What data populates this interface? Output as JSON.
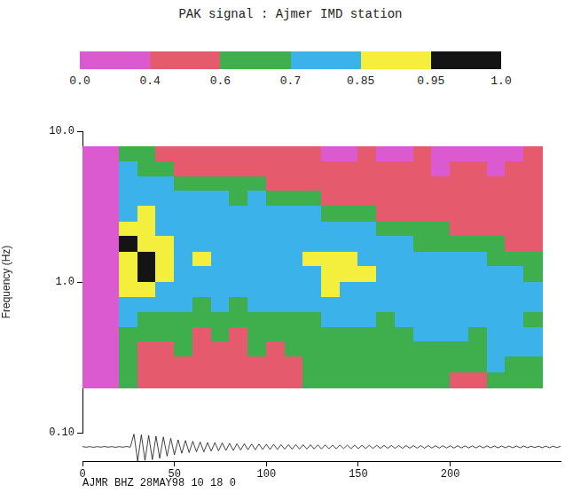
{
  "chart_data": {
    "type": "heatmap",
    "title": "PAK signal : Ajmer IMD station",
    "xlabel": "AJMR BHZ 28MAY98 10 18 0",
    "ylabel": "Frequency (Hz)",
    "log": "y",
    "grid": false,
    "xlim": [
      0,
      260
    ],
    "xticks": [
      0,
      50,
      100,
      150,
      200
    ],
    "ylim": [
      0.1,
      10
    ],
    "yticks": [
      {
        "value": 0.1,
        "label": "0.10"
      },
      {
        "value": 1,
        "label": "1.0"
      },
      {
        "value": 10,
        "label": "10.0"
      }
    ],
    "colorbar": {
      "range": [
        0,
        1
      ],
      "ticks": [
        {
          "value": 0,
          "label": "0.0"
        },
        {
          "value": 0.4,
          "label": "0.4"
        },
        {
          "value": 0.6,
          "label": "0.6"
        },
        {
          "value": 0.7,
          "label": "0.7"
        },
        {
          "value": 0.85,
          "label": "0.85"
        },
        {
          "value": 0.95,
          "label": "0.95"
        },
        {
          "value": 1,
          "label": "1.0"
        }
      ],
      "colors": [
        "#dc5ad0",
        "#e65a6e",
        "#3fae4c",
        "#3cb2ea",
        "#f4ef3c",
        "#141414"
      ]
    },
    "x_edges": [
      0,
      10,
      20,
      30,
      40,
      50,
      60,
      70,
      80,
      90,
      100,
      110,
      120,
      130,
      140,
      150,
      160,
      170,
      180,
      190,
      200,
      210,
      220,
      230,
      240,
      250
    ],
    "y_edges": [
      7.9,
      6.3,
      5.0,
      4.0,
      3.2,
      2.5,
      2.0,
      1.58,
      1.26,
      1.0,
      0.79,
      0.63,
      0.5,
      0.4,
      0.32,
      0.25,
      0.2
    ],
    "cells": [
      [
        0.3,
        0.3,
        0.65,
        0.65,
        0.5,
        0.5,
        0.5,
        0.5,
        0.5,
        0.5,
        0.5,
        0.5,
        0.5,
        0.3,
        0.3,
        0.5,
        0.3,
        0.3,
        0.5,
        0.3,
        0.3,
        0.3,
        0.3,
        0.3,
        0.5
      ],
      [
        0.3,
        0.3,
        0.78,
        0.65,
        0.65,
        0.5,
        0.5,
        0.5,
        0.5,
        0.5,
        0.5,
        0.5,
        0.5,
        0.5,
        0.5,
        0.5,
        0.5,
        0.5,
        0.5,
        0.3,
        0.5,
        0.5,
        0.3,
        0.5,
        0.5
      ],
      [
        0.3,
        0.3,
        0.78,
        0.78,
        0.78,
        0.65,
        0.65,
        0.65,
        0.65,
        0.65,
        0.5,
        0.5,
        0.5,
        0.5,
        0.5,
        0.5,
        0.5,
        0.5,
        0.5,
        0.5,
        0.5,
        0.5,
        0.5,
        0.5,
        0.5
      ],
      [
        0.3,
        0.3,
        0.78,
        0.78,
        0.78,
        0.78,
        0.78,
        0.78,
        0.65,
        0.78,
        0.65,
        0.65,
        0.65,
        0.5,
        0.5,
        0.5,
        0.5,
        0.5,
        0.5,
        0.5,
        0.5,
        0.5,
        0.5,
        0.5,
        0.5
      ],
      [
        0.3,
        0.3,
        0.78,
        0.9,
        0.78,
        0.78,
        0.78,
        0.78,
        0.78,
        0.78,
        0.78,
        0.78,
        0.78,
        0.65,
        0.65,
        0.65,
        0.5,
        0.5,
        0.5,
        0.5,
        0.5,
        0.5,
        0.5,
        0.5,
        0.5
      ],
      [
        0.3,
        0.3,
        0.9,
        0.9,
        0.78,
        0.78,
        0.78,
        0.78,
        0.78,
        0.78,
        0.78,
        0.78,
        0.78,
        0.78,
        0.78,
        0.78,
        0.65,
        0.65,
        0.65,
        0.65,
        0.5,
        0.5,
        0.5,
        0.5,
        0.5
      ],
      [
        0.3,
        0.3,
        0.97,
        0.9,
        0.9,
        0.78,
        0.78,
        0.78,
        0.78,
        0.78,
        0.78,
        0.78,
        0.78,
        0.78,
        0.78,
        0.78,
        0.78,
        0.78,
        0.65,
        0.65,
        0.65,
        0.65,
        0.65,
        0.5,
        0.5
      ],
      [
        0.3,
        0.3,
        0.9,
        0.97,
        0.9,
        0.78,
        0.9,
        0.78,
        0.78,
        0.78,
        0.78,
        0.78,
        0.9,
        0.9,
        0.9,
        0.78,
        0.78,
        0.78,
        0.78,
        0.78,
        0.78,
        0.78,
        0.65,
        0.65,
        0.65
      ],
      [
        0.3,
        0.3,
        0.9,
        0.97,
        0.9,
        0.78,
        0.78,
        0.78,
        0.78,
        0.78,
        0.78,
        0.78,
        0.78,
        0.9,
        0.9,
        0.9,
        0.78,
        0.78,
        0.78,
        0.78,
        0.78,
        0.78,
        0.78,
        0.78,
        0.65
      ],
      [
        0.3,
        0.3,
        0.9,
        0.9,
        0.78,
        0.78,
        0.78,
        0.78,
        0.78,
        0.78,
        0.78,
        0.78,
        0.78,
        0.9,
        0.78,
        0.78,
        0.78,
        0.78,
        0.78,
        0.78,
        0.78,
        0.78,
        0.78,
        0.78,
        0.78
      ],
      [
        0.3,
        0.3,
        0.78,
        0.78,
        0.78,
        0.78,
        0.65,
        0.78,
        0.65,
        0.78,
        0.78,
        0.78,
        0.78,
        0.78,
        0.78,
        0.78,
        0.78,
        0.78,
        0.78,
        0.78,
        0.78,
        0.78,
        0.78,
        0.78,
        0.78
      ],
      [
        0.3,
        0.3,
        0.78,
        0.65,
        0.65,
        0.65,
        0.65,
        0.65,
        0.65,
        0.65,
        0.65,
        0.65,
        0.65,
        0.78,
        0.78,
        0.78,
        0.65,
        0.78,
        0.78,
        0.78,
        0.78,
        0.78,
        0.78,
        0.78,
        0.65
      ],
      [
        0.3,
        0.3,
        0.65,
        0.65,
        0.65,
        0.65,
        0.5,
        0.65,
        0.5,
        0.65,
        0.65,
        0.65,
        0.65,
        0.65,
        0.65,
        0.65,
        0.65,
        0.65,
        0.78,
        0.78,
        0.78,
        0.65,
        0.78,
        0.78,
        0.78
      ],
      [
        0.3,
        0.3,
        0.65,
        0.5,
        0.5,
        0.65,
        0.5,
        0.5,
        0.5,
        0.65,
        0.5,
        0.65,
        0.65,
        0.65,
        0.65,
        0.65,
        0.65,
        0.65,
        0.65,
        0.65,
        0.65,
        0.65,
        0.78,
        0.78,
        0.78
      ],
      [
        0.3,
        0.3,
        0.65,
        0.5,
        0.5,
        0.5,
        0.5,
        0.5,
        0.5,
        0.5,
        0.5,
        0.5,
        0.65,
        0.65,
        0.65,
        0.65,
        0.65,
        0.65,
        0.65,
        0.65,
        0.65,
        0.65,
        0.78,
        0.65,
        0.65
      ],
      [
        0.3,
        0.3,
        0.65,
        0.5,
        0.5,
        0.5,
        0.5,
        0.5,
        0.5,
        0.5,
        0.5,
        0.5,
        0.65,
        0.65,
        0.65,
        0.65,
        0.65,
        0.65,
        0.65,
        0.65,
        0.5,
        0.5,
        0.65,
        0.65,
        0.65
      ]
    ],
    "seismogram": {
      "color": "#111111",
      "ylim": [
        -1,
        1
      ],
      "x": [
        0,
        2,
        4,
        6,
        8,
        10,
        12,
        14,
        16,
        18,
        20,
        22,
        24,
        26,
        28,
        30,
        32,
        34,
        36,
        38,
        40,
        42,
        44,
        46,
        48,
        50,
        52,
        54,
        56,
        58,
        60,
        62,
        64,
        66,
        68,
        70,
        72,
        74,
        76,
        78,
        80,
        82,
        84,
        86,
        88,
        90,
        92,
        94,
        96,
        98,
        100,
        102,
        104,
        106,
        108,
        110,
        112,
        114,
        116,
        118,
        120,
        122,
        124,
        126,
        128,
        130,
        132,
        134,
        136,
        138,
        140,
        142,
        144,
        146,
        148,
        150,
        152,
        154,
        156,
        158,
        160,
        162,
        164,
        166,
        168,
        170,
        172,
        174,
        176,
        178,
        180,
        182,
        184,
        186,
        188,
        190,
        192,
        194,
        196,
        198,
        200,
        202,
        204,
        206,
        208,
        210,
        212,
        214,
        216,
        218,
        220,
        222,
        224,
        226,
        228,
        230,
        232,
        234,
        236,
        238,
        240,
        242,
        244,
        246,
        248,
        250,
        252,
        254,
        256,
        258,
        260
      ],
      "values": [
        0.02,
        -0.02,
        0.02,
        -0.03,
        0.02,
        -0.02,
        0.03,
        -0.02,
        0.02,
        -0.03,
        0.02,
        -0.02,
        0.03,
        -0.02,
        0.9,
        -1.0,
        0.85,
        -0.95,
        0.8,
        -0.9,
        0.75,
        -0.8,
        0.7,
        -0.65,
        0.6,
        -0.55,
        0.5,
        -0.45,
        0.45,
        -0.4,
        0.4,
        -0.35,
        0.35,
        -0.35,
        0.3,
        -0.3,
        0.3,
        -0.28,
        0.28,
        -0.25,
        0.25,
        -0.25,
        0.22,
        -0.22,
        0.22,
        -0.2,
        0.2,
        -0.2,
        0.2,
        -0.18,
        0.18,
        -0.18,
        0.18,
        -0.18,
        0.16,
        -0.16,
        0.16,
        -0.16,
        0.16,
        -0.15,
        0.15,
        -0.15,
        0.15,
        -0.14,
        0.14,
        -0.14,
        0.14,
        -0.13,
        0.13,
        -0.13,
        0.13,
        -0.12,
        0.12,
        -0.12,
        0.12,
        -0.12,
        0.11,
        -0.11,
        0.11,
        -0.11,
        0.11,
        -0.1,
        0.1,
        -0.1,
        0.1,
        -0.1,
        0.1,
        -0.1,
        0.09,
        -0.09,
        0.09,
        -0.09,
        0.09,
        -0.09,
        0.09,
        -0.08,
        0.08,
        -0.08,
        0.08,
        -0.08,
        0.08,
        -0.08,
        0.08,
        -0.07,
        0.07,
        -0.07,
        0.07,
        -0.07,
        0.07,
        -0.07,
        0.07,
        -0.06,
        0.06,
        -0.06,
        0.06,
        -0.06,
        0.06,
        -0.06,
        0.06,
        -0.06,
        0.06,
        -0.05,
        0.05,
        -0.05,
        0.05,
        -0.05,
        0.05,
        -0.05,
        0.05,
        -0.05,
        0.05
      ]
    }
  }
}
